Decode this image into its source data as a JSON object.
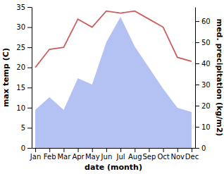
{
  "chart_data": {
    "type": "line",
    "x_label": "date (month)",
    "y_label": "max temp (C)",
    "y2_label": "med. precipitation (kg/m2)",
    "categories": [
      "Jan",
      "Feb",
      "Mar",
      "Apr",
      "May",
      "Jun",
      "Jul",
      "Aug",
      "Sep",
      "Oct",
      "Nov",
      "Dec"
    ],
    "series": [
      {
        "type": "area",
        "axis": "y2",
        "color": "#b3c1f3",
        "values": [
          18,
          24,
          18,
          33,
          30,
          50,
          62,
          48,
          38,
          28,
          19,
          17
        ]
      },
      {
        "type": "line",
        "color": "#cd5c5c",
        "values": [
          20,
          24.5,
          25,
          32,
          30,
          34,
          33.5,
          34,
          32,
          30,
          22.5,
          21.5
        ]
      }
    ],
    "ylim": [
      0,
      35
    ],
    "yticks": [
      0,
      5,
      10,
      15,
      20,
      25,
      30,
      35
    ],
    "y2lim": [
      0,
      66.7
    ],
    "y2ticks": [
      0,
      10,
      20,
      30,
      40,
      50,
      60
    ]
  }
}
